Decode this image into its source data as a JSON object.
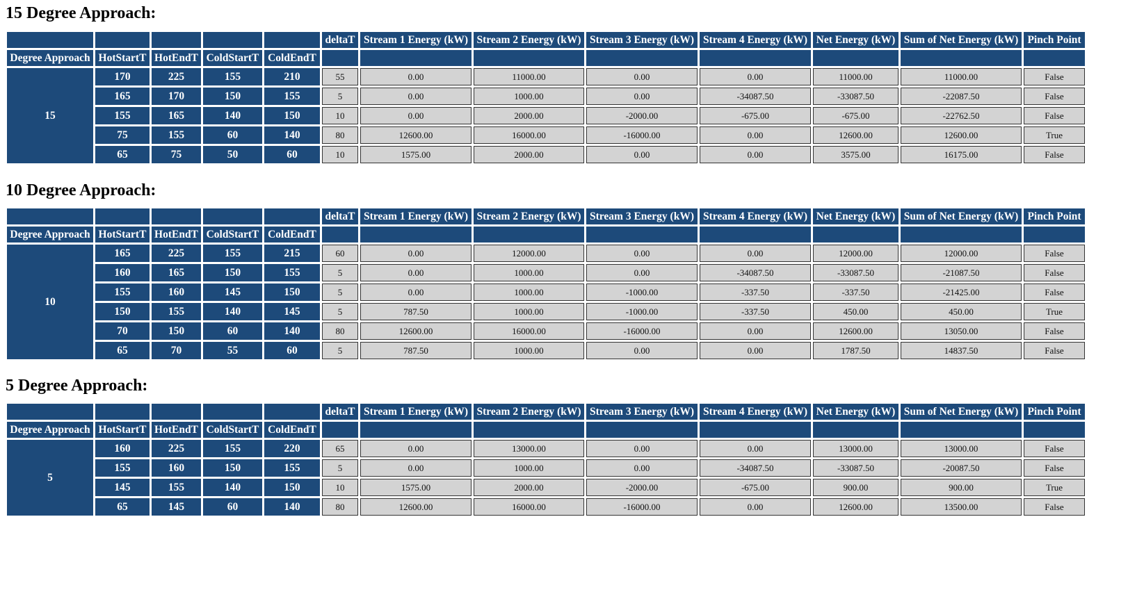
{
  "headers": {
    "degree_approach": "Degree Approach",
    "hot_start": "HotStartT",
    "hot_end": "HotEndT",
    "cold_start": "ColdStartT",
    "cold_end": "ColdEndT",
    "delta_t": "deltaT",
    "stream1": "Stream 1 Energy (kW)",
    "stream2": "Stream 2 Energy (kW)",
    "stream3": "Stream 3 Energy (kW)",
    "stream4": "Stream 4 Energy (kW)",
    "net": "Net Energy (kW)",
    "sum_net": "Sum of Net Energy (kW)",
    "pinch": "Pinch Point"
  },
  "colors": {
    "header_bg": "#1d4a7a",
    "cell_bg": "#d3d3d3"
  },
  "sections": [
    {
      "title": "15 Degree Approach:",
      "degree": "15",
      "rows": [
        [
          "170",
          "225",
          "155",
          "210",
          "55",
          "0.00",
          "11000.00",
          "0.00",
          "0.00",
          "11000.00",
          "11000.00",
          "False"
        ],
        [
          "165",
          "170",
          "150",
          "155",
          "5",
          "0.00",
          "1000.00",
          "0.00",
          "-34087.50",
          "-33087.50",
          "-22087.50",
          "False"
        ],
        [
          "155",
          "165",
          "140",
          "150",
          "10",
          "0.00",
          "2000.00",
          "-2000.00",
          "-675.00",
          "-675.00",
          "-22762.50",
          "False"
        ],
        [
          "75",
          "155",
          "60",
          "140",
          "80",
          "12600.00",
          "16000.00",
          "-16000.00",
          "0.00",
          "12600.00",
          "12600.00",
          "True"
        ],
        [
          "65",
          "75",
          "50",
          "60",
          "10",
          "1575.00",
          "2000.00",
          "0.00",
          "0.00",
          "3575.00",
          "16175.00",
          "False"
        ]
      ]
    },
    {
      "title": "10 Degree Approach:",
      "degree": "10",
      "rows": [
        [
          "165",
          "225",
          "155",
          "215",
          "60",
          "0.00",
          "12000.00",
          "0.00",
          "0.00",
          "12000.00",
          "12000.00",
          "False"
        ],
        [
          "160",
          "165",
          "150",
          "155",
          "5",
          "0.00",
          "1000.00",
          "0.00",
          "-34087.50",
          "-33087.50",
          "-21087.50",
          "False"
        ],
        [
          "155",
          "160",
          "145",
          "150",
          "5",
          "0.00",
          "1000.00",
          "-1000.00",
          "-337.50",
          "-337.50",
          "-21425.00",
          "False"
        ],
        [
          "150",
          "155",
          "140",
          "145",
          "5",
          "787.50",
          "1000.00",
          "-1000.00",
          "-337.50",
          "450.00",
          "450.00",
          "True"
        ],
        [
          "70",
          "150",
          "60",
          "140",
          "80",
          "12600.00",
          "16000.00",
          "-16000.00",
          "0.00",
          "12600.00",
          "13050.00",
          "False"
        ],
        [
          "65",
          "70",
          "55",
          "60",
          "5",
          "787.50",
          "1000.00",
          "0.00",
          "0.00",
          "1787.50",
          "14837.50",
          "False"
        ]
      ]
    },
    {
      "title": "5 Degree Approach:",
      "degree": "5",
      "rows": [
        [
          "160",
          "225",
          "155",
          "220",
          "65",
          "0.00",
          "13000.00",
          "0.00",
          "0.00",
          "13000.00",
          "13000.00",
          "False"
        ],
        [
          "155",
          "160",
          "150",
          "155",
          "5",
          "0.00",
          "1000.00",
          "0.00",
          "-34087.50",
          "-33087.50",
          "-20087.50",
          "False"
        ],
        [
          "145",
          "155",
          "140",
          "150",
          "10",
          "1575.00",
          "2000.00",
          "-2000.00",
          "-675.00",
          "900.00",
          "900.00",
          "True"
        ],
        [
          "65",
          "145",
          "60",
          "140",
          "80",
          "12600.00",
          "16000.00",
          "-16000.00",
          "0.00",
          "12600.00",
          "13500.00",
          "False"
        ]
      ]
    }
  ]
}
